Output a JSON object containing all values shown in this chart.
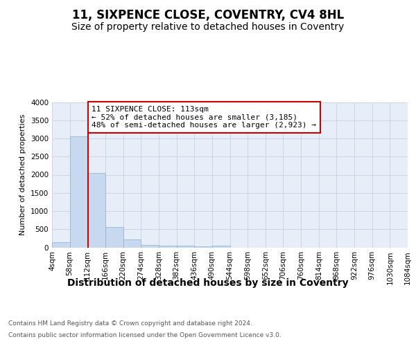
{
  "title": "11, SIXPENCE CLOSE, COVENTRY, CV4 8HL",
  "subtitle": "Size of property relative to detached houses in Coventry",
  "xlabel": "Distribution of detached houses by size in Coventry",
  "ylabel": "Number of detached properties",
  "bin_edges": [
    4,
    58,
    112,
    166,
    220,
    274,
    328,
    382,
    436,
    490,
    544,
    598,
    652,
    706,
    760,
    814,
    868,
    922,
    976,
    1030,
    1084
  ],
  "bin_labels": [
    "4sqm",
    "58sqm",
    "112sqm",
    "166sqm",
    "220sqm",
    "274sqm",
    "328sqm",
    "382sqm",
    "436sqm",
    "490sqm",
    "544sqm",
    "598sqm",
    "652sqm",
    "706sqm",
    "760sqm",
    "814sqm",
    "868sqm",
    "922sqm",
    "976sqm",
    "1030sqm",
    "1084sqm"
  ],
  "bar_heights": [
    150,
    3050,
    2050,
    570,
    210,
    75,
    55,
    45,
    35,
    45,
    0,
    0,
    0,
    0,
    0,
    0,
    0,
    0,
    0,
    0
  ],
  "bar_color": "#c8d8ee",
  "bar_edge_color": "#8ab0d0",
  "grid_color": "#ccd5e5",
  "background_color": "#e8eef8",
  "property_size": 113,
  "vline_color": "#cc0000",
  "annotation_text": "11 SIXPENCE CLOSE: 113sqm\n← 52% of detached houses are smaller (3,185)\n48% of semi-detached houses are larger (2,923) →",
  "annotation_box_color": "#cc0000",
  "ylim": [
    0,
    4000
  ],
  "yticks": [
    0,
    500,
    1000,
    1500,
    2000,
    2500,
    3000,
    3500,
    4000
  ],
  "footnote1": "Contains HM Land Registry data © Crown copyright and database right 2024.",
  "footnote2": "Contains public sector information licensed under the Open Government Licence v3.0.",
  "title_fontsize": 12,
  "subtitle_fontsize": 10,
  "xlabel_fontsize": 10,
  "ylabel_fontsize": 8,
  "tick_fontsize": 7.5,
  "footnote_fontsize": 6.5
}
